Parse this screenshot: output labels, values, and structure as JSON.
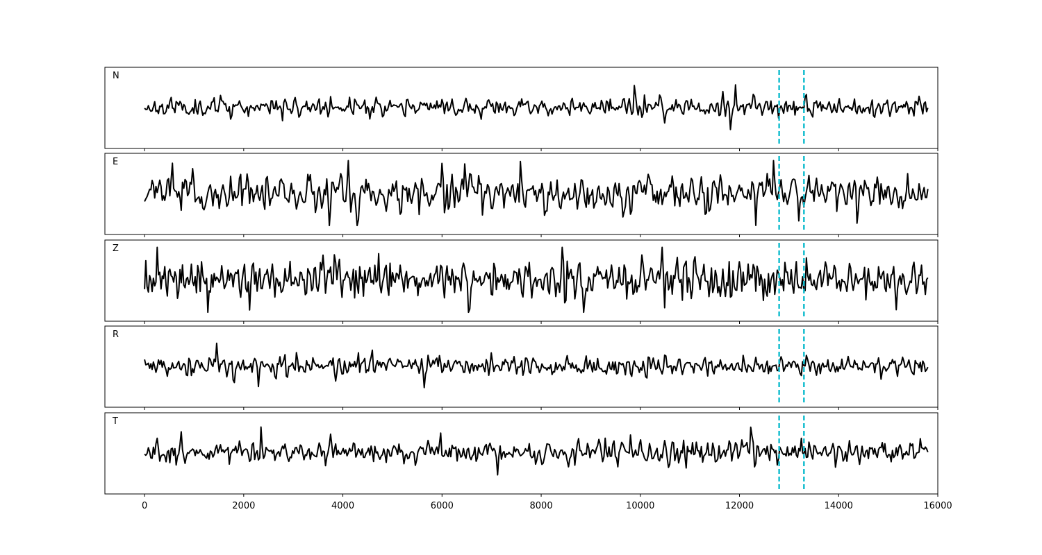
{
  "chart_data": {
    "type": "line",
    "title": "",
    "xlabel": "",
    "ylabel": "",
    "xlim": [
      -800,
      16000
    ],
    "x_ticks": [
      0,
      2000,
      4000,
      6000,
      8000,
      10000,
      12000,
      14000,
      16000
    ],
    "x_tick_labels": [
      "0",
      "2000",
      "4000",
      "6000",
      "8000",
      "10000",
      "12000",
      "14000",
      "16000"
    ],
    "x_range": [
      0,
      15800
    ],
    "grid": false,
    "legend": "none",
    "colors": {
      "trace": "#000000",
      "marker_line": "#17becf"
    },
    "vertical_markers": [
      12800,
      13300
    ],
    "panels": [
      {
        "label": "N",
        "seed": 11,
        "amp": 0.45,
        "smooth": 0.35
      },
      {
        "label": "E",
        "seed": 23,
        "amp": 0.85,
        "smooth": 0.45
      },
      {
        "label": "Z",
        "seed": 37,
        "amp": 0.95,
        "smooth": 0.2
      },
      {
        "label": "R",
        "seed": 53,
        "amp": 0.5,
        "smooth": 0.35
      },
      {
        "label": "T",
        "seed": 71,
        "amp": 0.55,
        "smooth": 0.3
      }
    ]
  }
}
